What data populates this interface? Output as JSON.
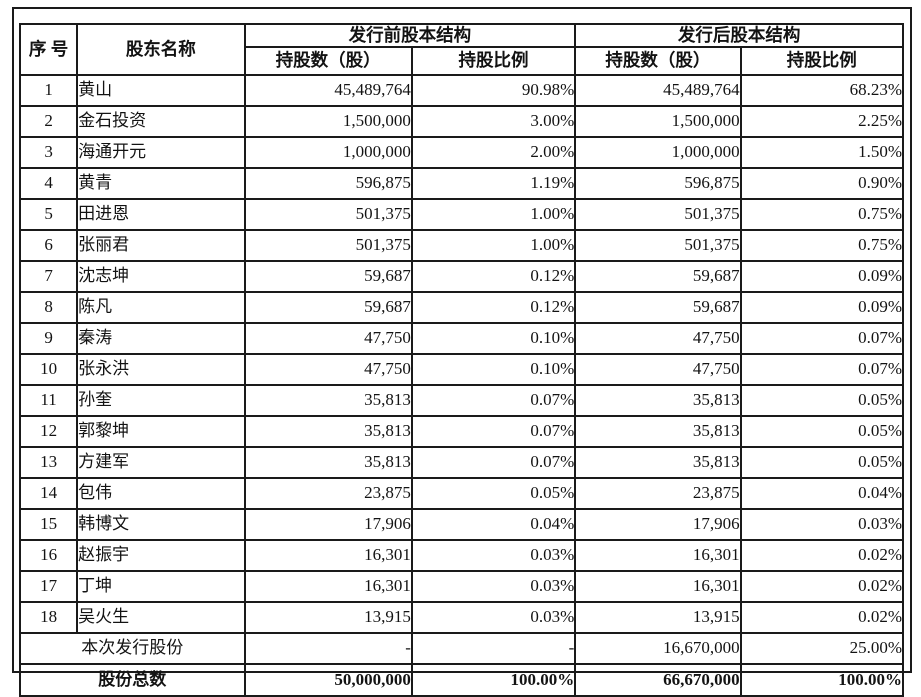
{
  "page": {
    "background": "#ffffff",
    "text_color": "#131313",
    "border_color": "#1a1a1a"
  },
  "table": {
    "header": {
      "serial": "序\n号",
      "shareholder": "股东名称",
      "pre_group": "发行前股本结构",
      "post_group": "发行后股本结构",
      "pre_shares_label": "持股数（股）",
      "pre_ratio_label": "持股比例",
      "post_shares_label": "持股数（股）",
      "post_ratio_label": "持股比例"
    },
    "rows": [
      {
        "no": "1",
        "name": "黄山",
        "pre_shares": "45,489,764",
        "pre_ratio": "90.98%",
        "post_shares": "45,489,764",
        "post_ratio": "68.23%"
      },
      {
        "no": "2",
        "name": "金石投资",
        "pre_shares": "1,500,000",
        "pre_ratio": "3.00%",
        "post_shares": "1,500,000",
        "post_ratio": "2.25%"
      },
      {
        "no": "3",
        "name": "海通开元",
        "pre_shares": "1,000,000",
        "pre_ratio": "2.00%",
        "post_shares": "1,000,000",
        "post_ratio": "1.50%"
      },
      {
        "no": "4",
        "name": "黄青",
        "pre_shares": "596,875",
        "pre_ratio": "1.19%",
        "post_shares": "596,875",
        "post_ratio": "0.90%"
      },
      {
        "no": "5",
        "name": "田进恩",
        "pre_shares": "501,375",
        "pre_ratio": "1.00%",
        "post_shares": "501,375",
        "post_ratio": "0.75%"
      },
      {
        "no": "6",
        "name": "张丽君",
        "pre_shares": "501,375",
        "pre_ratio": "1.00%",
        "post_shares": "501,375",
        "post_ratio": "0.75%"
      },
      {
        "no": "7",
        "name": "沈志坤",
        "pre_shares": "59,687",
        "pre_ratio": "0.12%",
        "post_shares": "59,687",
        "post_ratio": "0.09%"
      },
      {
        "no": "8",
        "name": "陈凡",
        "pre_shares": "59,687",
        "pre_ratio": "0.12%",
        "post_shares": "59,687",
        "post_ratio": "0.09%"
      },
      {
        "no": "9",
        "name": "秦涛",
        "pre_shares": "47,750",
        "pre_ratio": "0.10%",
        "post_shares": "47,750",
        "post_ratio": "0.07%"
      },
      {
        "no": "10",
        "name": "张永洪",
        "pre_shares": "47,750",
        "pre_ratio": "0.10%",
        "post_shares": "47,750",
        "post_ratio": "0.07%"
      },
      {
        "no": "11",
        "name": "孙奎",
        "pre_shares": "35,813",
        "pre_ratio": "0.07%",
        "post_shares": "35,813",
        "post_ratio": "0.05%"
      },
      {
        "no": "12",
        "name": "郭黎坤",
        "pre_shares": "35,813",
        "pre_ratio": "0.07%",
        "post_shares": "35,813",
        "post_ratio": "0.05%"
      },
      {
        "no": "13",
        "name": "方建军",
        "pre_shares": "35,813",
        "pre_ratio": "0.07%",
        "post_shares": "35,813",
        "post_ratio": "0.05%"
      },
      {
        "no": "14",
        "name": "包伟",
        "pre_shares": "23,875",
        "pre_ratio": "0.05%",
        "post_shares": "23,875",
        "post_ratio": "0.04%"
      },
      {
        "no": "15",
        "name": "韩博文",
        "pre_shares": "17,906",
        "pre_ratio": "0.04%",
        "post_shares": "17,906",
        "post_ratio": "0.03%"
      },
      {
        "no": "16",
        "name": "赵振宇",
        "pre_shares": "16,301",
        "pre_ratio": "0.03%",
        "post_shares": "16,301",
        "post_ratio": "0.02%"
      },
      {
        "no": "17",
        "name": "丁坤",
        "pre_shares": "16,301",
        "pre_ratio": "0.03%",
        "post_shares": "16,301",
        "post_ratio": "0.02%"
      },
      {
        "no": "18",
        "name": "吴火生",
        "pre_shares": "13,915",
        "pre_ratio": "0.03%",
        "post_shares": "13,915",
        "post_ratio": "0.02%"
      }
    ],
    "issue_row": {
      "label": "本次发行股份",
      "pre_shares": "-",
      "pre_ratio": "-",
      "post_shares": "16,670,000",
      "post_ratio": "25.00%"
    },
    "total_row": {
      "label": "股份总数",
      "pre_shares": "50,000,000",
      "pre_ratio": "100.00%",
      "post_shares": "66,670,000",
      "post_ratio": "100.00%"
    }
  }
}
